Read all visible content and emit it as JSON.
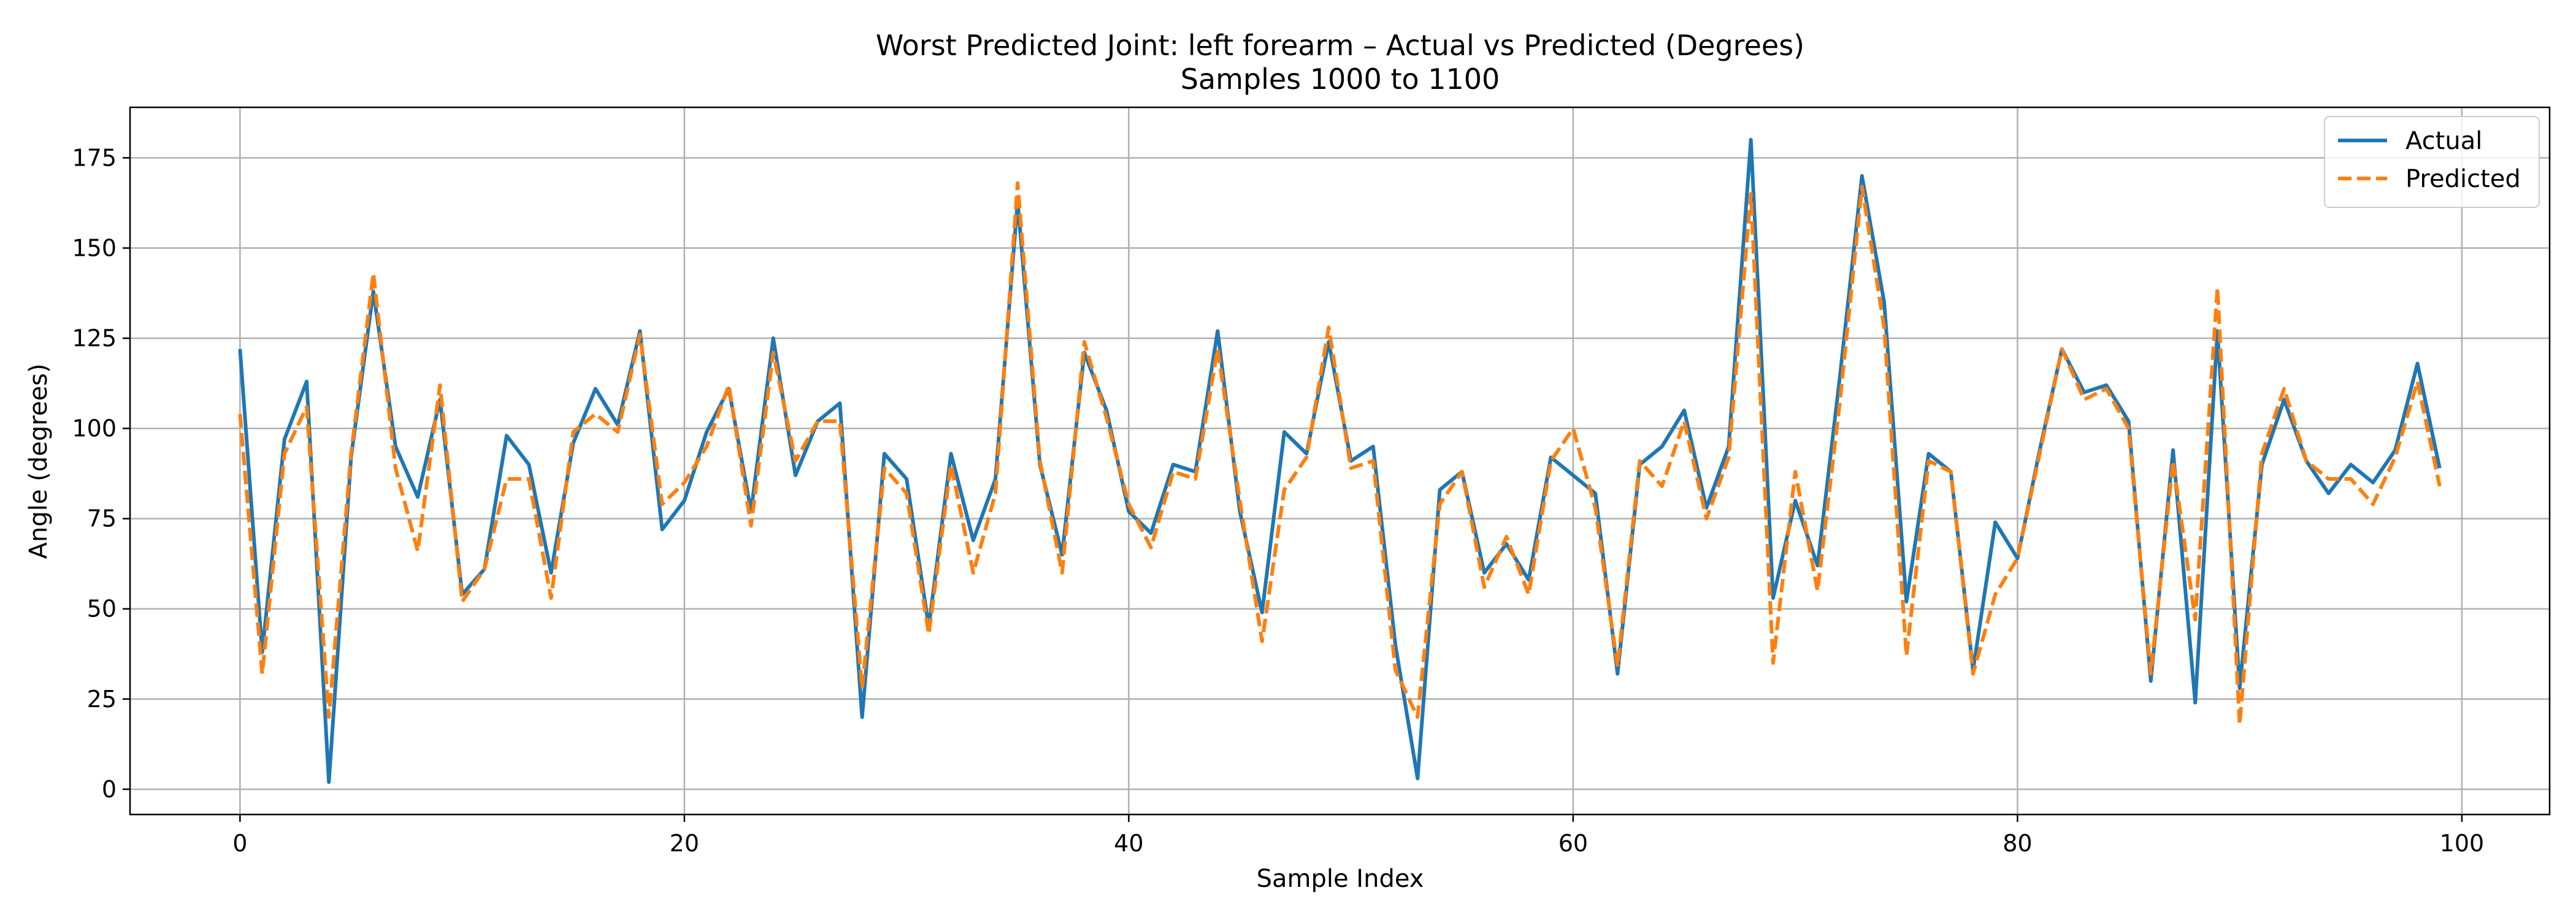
{
  "chart_data": {
    "type": "line",
    "title": "Worst Predicted Joint: left forearm – Actual vs Predicted (Degrees)",
    "subtitle": "Samples 1000 to 1100",
    "xlabel": "Sample Index",
    "ylabel": "Angle (degrees)",
    "xlim": [
      -4.95,
      103.95
    ],
    "ylim": [
      -7,
      189
    ],
    "xticks": [
      0,
      20,
      40,
      60,
      80,
      100
    ],
    "yticks": [
      0,
      25,
      50,
      75,
      100,
      125,
      150,
      175
    ],
    "grid": true,
    "legend_position": "top-right",
    "x": [
      0,
      1,
      2,
      3,
      4,
      5,
      6,
      7,
      8,
      9,
      10,
      11,
      12,
      13,
      14,
      15,
      16,
      17,
      18,
      19,
      20,
      21,
      22,
      23,
      24,
      25,
      26,
      27,
      28,
      29,
      30,
      31,
      32,
      33,
      34,
      35,
      36,
      37,
      38,
      39,
      40,
      41,
      42,
      43,
      44,
      45,
      46,
      47,
      48,
      49,
      50,
      51,
      52,
      53,
      54,
      55,
      56,
      57,
      58,
      59,
      60,
      61,
      62,
      63,
      64,
      65,
      66,
      67,
      68,
      69,
      70,
      71,
      72,
      73,
      74,
      75,
      76,
      77,
      78,
      79,
      80,
      81,
      82,
      83,
      84,
      85,
      86,
      87,
      88,
      89,
      90,
      91,
      92,
      93,
      94,
      95,
      96,
      97,
      98,
      99
    ],
    "series": [
      {
        "name": "Actual",
        "color": "#1f77b4",
        "style": "solid",
        "values": [
          122,
          38,
          97,
          113,
          2,
          92,
          138,
          95,
          81,
          108,
          54,
          61,
          98,
          90,
          60,
          96,
          111,
          101,
          127,
          72,
          80,
          99,
          111,
          77,
          125,
          87,
          102,
          107,
          20,
          93,
          86,
          45,
          93,
          69,
          86,
          163,
          90,
          65,
          121,
          105,
          77,
          71,
          90,
          88,
          127,
          77,
          49,
          99,
          93,
          124,
          91,
          95,
          40,
          3,
          83,
          88,
          60,
          68,
          58,
          92,
          87,
          82,
          32,
          90,
          95,
          105,
          78,
          95,
          180,
          53,
          80,
          62,
          114,
          170,
          135,
          52,
          93,
          88,
          33,
          74,
          64,
          94,
          122,
          110,
          112,
          102,
          30,
          94,
          24,
          127,
          28,
          90,
          108,
          91,
          82,
          90,
          85,
          94,
          118,
          89
        ]
      },
      {
        "name": "Predicted",
        "color": "#ff7f0e",
        "style": "dashed",
        "values": [
          104,
          32,
          93,
          106,
          20,
          93,
          143,
          89,
          66,
          112,
          52,
          61,
          86,
          86,
          53,
          99,
          104,
          99,
          126,
          79,
          85,
          95,
          112,
          73,
          121,
          91,
          102,
          102,
          28,
          89,
          82,
          43,
          90,
          60,
          82,
          168,
          91,
          60,
          124,
          103,
          79,
          67,
          88,
          86,
          122,
          80,
          41,
          83,
          92,
          128,
          89,
          91,
          33,
          20,
          79,
          88,
          56,
          70,
          54,
          91,
          100,
          78,
          34,
          91,
          84,
          102,
          75,
          92,
          165,
          35,
          88,
          55,
          107,
          167,
          128,
          37,
          91,
          88,
          32,
          54,
          64,
          93,
          122,
          108,
          111,
          100,
          32,
          91,
          47,
          139,
          18,
          93,
          111,
          91,
          86,
          86,
          79,
          92,
          113,
          84
        ]
      }
    ]
  }
}
